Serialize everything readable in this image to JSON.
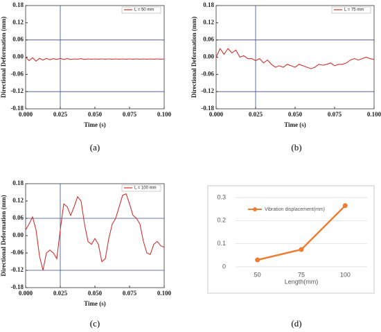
{
  "chart_data": [
    {
      "type": "signal",
      "panel_label": "(a)",
      "xlabel": "Time (s)",
      "ylabel": "Directional Deformation (mm)",
      "xlim": [
        0,
        0.1
      ],
      "xticks": [
        {
          "value": 0,
          "label": "0.000"
        },
        0.025,
        {
          "value": 0.05,
          "label": "0.050"
        },
        0.075,
        {
          "value": 0.1,
          "label": "0.100"
        }
      ],
      "ylim": [
        -0.18,
        0.18
      ],
      "yticks": [
        -0.18,
        -0.12,
        -0.06,
        {
          "value": 0,
          "label": "0.00"
        },
        0.06,
        0.12,
        0.18
      ],
      "ref_x": 0.025,
      "ref_y": [
        0.06,
        -0.12
      ],
      "ref_color": "#3b4a8c",
      "legend": "upper right",
      "x": [
        0,
        0.0025,
        0.005,
        0.0075,
        0.01,
        0.0125,
        0.015,
        0.0175,
        0.02,
        0.0225,
        0.025,
        0.0275,
        0.03,
        0.0325,
        0.035,
        0.0375,
        0.04,
        0.0425,
        0.045,
        0.0475,
        0.05,
        0.0525,
        0.055,
        0.0575,
        0.06,
        0.0625,
        0.065,
        0.0675,
        0.07,
        0.0725,
        0.075,
        0.0775,
        0.08,
        0.0825,
        0.085,
        0.0875,
        0.09,
        0.0925,
        0.095,
        0.0975,
        0.1
      ],
      "series": [
        {
          "name": "L = 50 mm",
          "color": "#d0312d",
          "values": [
            0,
            -0.012,
            -0.002,
            -0.014,
            -0.004,
            -0.01,
            -0.004,
            -0.009,
            -0.005,
            -0.008,
            -0.004,
            -0.008,
            -0.005,
            -0.008,
            -0.006,
            -0.007,
            -0.005,
            -0.008,
            -0.006,
            -0.007,
            -0.006,
            -0.007,
            -0.006,
            -0.007,
            -0.006,
            -0.007,
            -0.006,
            -0.007,
            -0.006,
            -0.007,
            -0.006,
            -0.007,
            -0.006,
            -0.007,
            -0.006,
            -0.007,
            -0.006,
            -0.007,
            -0.006,
            -0.007,
            -0.006
          ]
        }
      ]
    },
    {
      "type": "signal",
      "panel_label": "(b)",
      "xlabel": "Time (s)",
      "ylabel": "Directional Deformation (mm)",
      "xlim": [
        0,
        0.1
      ],
      "xticks": [
        {
          "value": 0,
          "label": "0.000"
        },
        0.025,
        {
          "value": 0.05,
          "label": "0.050"
        },
        0.075,
        {
          "value": 0.1,
          "label": "0.100"
        }
      ],
      "ylim": [
        -0.18,
        0.18
      ],
      "yticks": [
        -0.18,
        -0.12,
        -0.06,
        {
          "value": 0,
          "label": "0.00"
        },
        0.06,
        0.12,
        0.18
      ],
      "ref_x": 0.025,
      "ref_y": [
        0.06,
        -0.12
      ],
      "ref_color": "#3b4a8c",
      "legend": "upper right",
      "x": [
        0,
        0.0025,
        0.005,
        0.0075,
        0.01,
        0.0125,
        0.015,
        0.0175,
        0.02,
        0.0225,
        0.025,
        0.0275,
        0.03,
        0.0325,
        0.035,
        0.0375,
        0.04,
        0.0425,
        0.045,
        0.0475,
        0.05,
        0.0525,
        0.055,
        0.0575,
        0.06,
        0.0625,
        0.065,
        0.0675,
        0.07,
        0.0725,
        0.075,
        0.0775,
        0.08,
        0.0825,
        0.085,
        0.0875,
        0.09,
        0.0925,
        0.095,
        0.0975,
        0.1
      ],
      "series": [
        {
          "name": "L = 75 mm",
          "color": "#d0312d",
          "values": [
            0,
            0.03,
            0.01,
            0.03,
            0.015,
            0.025,
            0,
            0.005,
            -0.005,
            -0.005,
            -0.012,
            -0.005,
            -0.02,
            -0.01,
            -0.025,
            -0.035,
            -0.03,
            -0.035,
            -0.025,
            -0.03,
            -0.035,
            -0.025,
            -0.03,
            -0.035,
            -0.04,
            -0.035,
            -0.025,
            -0.028,
            -0.025,
            -0.02,
            -0.03,
            -0.025,
            -0.025,
            -0.02,
            -0.01,
            -0.005,
            -0.01,
            -0.005,
            0,
            -0.005,
            -0.008
          ]
        }
      ]
    },
    {
      "type": "signal",
      "panel_label": "(c)",
      "xlabel": "Time (s)",
      "ylabel": "Directional Deformation (mm)",
      "xlim": [
        0,
        0.1
      ],
      "xticks": [
        {
          "value": 0,
          "label": "0.000"
        },
        0.025,
        {
          "value": 0.05,
          "label": "0.050"
        },
        0.075,
        {
          "value": 0.1,
          "label": "0.100"
        }
      ],
      "ylim": [
        -0.18,
        0.18
      ],
      "yticks": [
        -0.18,
        -0.12,
        -0.06,
        {
          "value": 0,
          "label": "0.00"
        },
        0.06,
        0.12,
        0.18
      ],
      "ref_x": 0.025,
      "ref_y": [
        0.06,
        -0.12
      ],
      "ref_color": "#3b4a8c",
      "legend": "upper right",
      "x": [
        0,
        0.0025,
        0.005,
        0.0075,
        0.01,
        0.0125,
        0.015,
        0.0175,
        0.02,
        0.0225,
        0.025,
        0.0275,
        0.03,
        0.0325,
        0.035,
        0.0375,
        0.04,
        0.0425,
        0.045,
        0.0475,
        0.05,
        0.0525,
        0.055,
        0.0575,
        0.06,
        0.0625,
        0.065,
        0.0675,
        0.07,
        0.0725,
        0.075,
        0.0775,
        0.08,
        0.0825,
        0.085,
        0.0875,
        0.09,
        0.0925,
        0.095,
        0.0975,
        0.1
      ],
      "series": [
        {
          "name": "L = 100 mm",
          "color": "#d0312d",
          "values": [
            0.02,
            0.04,
            0.065,
            0.02,
            -0.07,
            -0.12,
            -0.06,
            -0.05,
            -0.06,
            -0.08,
            0.02,
            0.11,
            0.1,
            0.07,
            0.1,
            0.135,
            0.12,
            0.04,
            -0.02,
            -0.03,
            -0.01,
            -0.03,
            -0.09,
            -0.08,
            -0.01,
            0.04,
            0.06,
            0.1,
            0.14,
            0.145,
            0.11,
            0.07,
            0.06,
            0.04,
            -0.02,
            -0.06,
            -0.065,
            -0.03,
            -0.02,
            -0.035,
            -0.04
          ]
        }
      ]
    },
    {
      "type": "line",
      "panel_label": "(d)",
      "xlabel": "Length(mm)",
      "categories": [
        "50",
        "75",
        "100"
      ],
      "ylim": [
        0,
        0.3
      ],
      "yticks": [
        0,
        0.1,
        0.2,
        0.3
      ],
      "grid": true,
      "legend": "upper left",
      "series": [
        {
          "name": "Vibration displacement(mm)",
          "color": "#ed7d31",
          "values": [
            0.03,
            0.075,
            0.265
          ]
        }
      ]
    }
  ]
}
